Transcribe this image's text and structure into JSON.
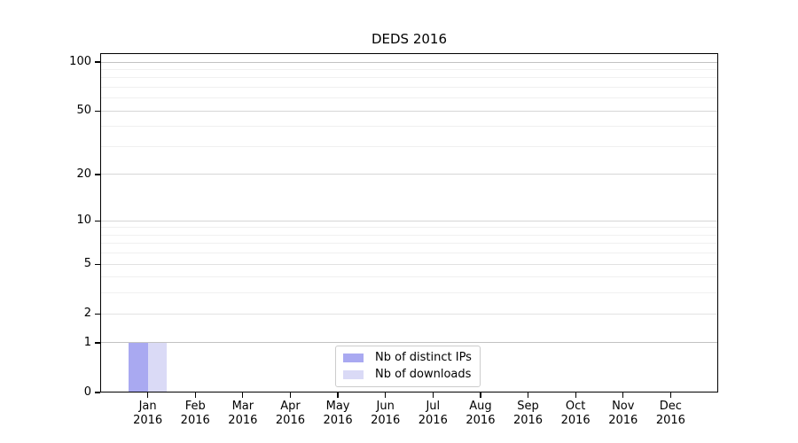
{
  "title": "DEDS 2016",
  "chart_data": {
    "type": "bar",
    "title": "DEDS 2016",
    "categories": [
      "Jan 2016",
      "Feb 2016",
      "Mar 2016",
      "Apr 2016",
      "May 2016",
      "Jun 2016",
      "Jul 2016",
      "Aug 2016",
      "Sep 2016",
      "Oct 2016",
      "Nov 2016",
      "Dec 2016"
    ],
    "series": [
      {
        "name": "Nb of distinct IPs",
        "color": "#a9a9f1",
        "values": [
          1,
          0,
          0,
          0,
          0,
          0,
          0,
          0,
          0,
          0,
          0,
          0
        ]
      },
      {
        "name": "Nb of downloads",
        "color": "#dadaf6",
        "values": [
          1,
          0,
          0,
          0,
          0,
          0,
          0,
          0,
          0,
          0,
          0,
          0
        ]
      }
    ],
    "xlabel": "",
    "ylabel": "",
    "y_scale": "log1p",
    "y_ticks": [
      0,
      1,
      2,
      5,
      10,
      20,
      50,
      100
    ],
    "y_minor_ticks": [
      3,
      4,
      6,
      7,
      8,
      9,
      30,
      40,
      60,
      70,
      80,
      90
    ],
    "ylim": [
      0,
      113
    ],
    "grid": true,
    "legend_position": "lower center",
    "colors": {
      "grid_emphasis": "#c2c2c2",
      "grid_major": "#d6d6d6",
      "grid_mid": "#e2e2e2",
      "grid_minor": "#f0f0f0",
      "axis": "#000000",
      "text": "#000000",
      "background": "#ffffff"
    }
  }
}
